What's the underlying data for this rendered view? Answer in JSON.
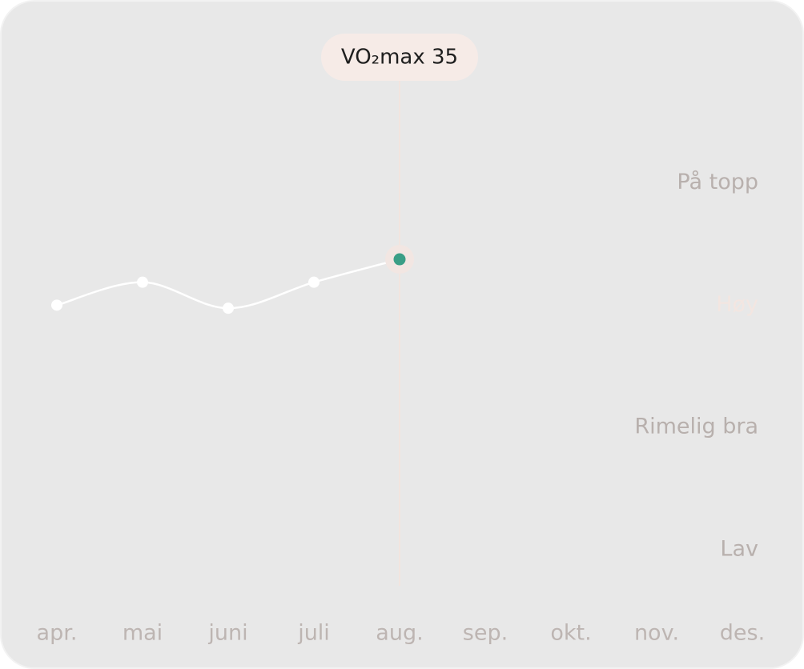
{
  "chart_data": {
    "type": "line",
    "categories": [
      "apr.",
      "mai",
      "juni",
      "juli",
      "aug.",
      "sep.",
      "okt.",
      "nov.",
      "des."
    ],
    "values": [
      32,
      33.5,
      31.8,
      33.5,
      35,
      null,
      null,
      null,
      null
    ],
    "value_labels": [
      null,
      null,
      null,
      null,
      "VO₂max 35",
      null,
      null,
      null,
      null
    ],
    "color": "#ffffff",
    "highlight_color": "#3a9e86",
    "ylim": [
      14,
      47
    ],
    "yticks": [
      {
        "value": 16,
        "label": "Lav"
      },
      {
        "value": 24,
        "label": "Rimelig bra"
      },
      {
        "value": 32,
        "label": "Høy"
      },
      {
        "value": 40,
        "label": "På topp"
      }
    ],
    "grid": false
  }
}
